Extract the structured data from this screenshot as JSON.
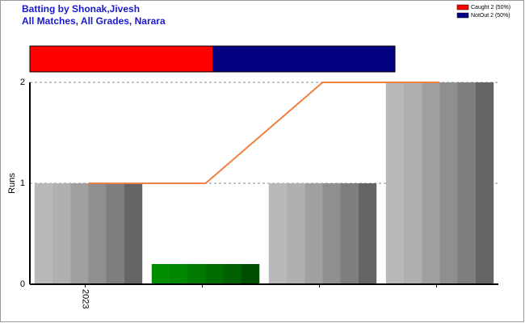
{
  "chart_data": {
    "type": "bar",
    "title": [
      "Batting by Shonak,Jivesh",
      "All Matches, All Grades, Narara"
    ],
    "y_label": "Runs",
    "categories": [
      "2023",
      null,
      null,
      null
    ],
    "values": [
      1,
      0.2,
      1,
      2
    ],
    "colors": [
      "#a8a8a8",
      "#008000",
      "#a8a8a8",
      "#a8a8a8"
    ],
    "line": {
      "values": [
        1,
        1,
        2,
        2
      ],
      "color": "#f08040"
    },
    "ylim": [
      0,
      2
    ],
    "yticks": [
      0,
      1,
      2
    ],
    "grid": true,
    "outcomes": {
      "xlim": [
        0,
        100
      ],
      "series": [
        {
          "name": "Caught 2 (50%)",
          "color": "#ff0000",
          "value": 50
        },
        {
          "name": "NotOut 2 (50%)",
          "color": "#000080",
          "value": 50
        }
      ]
    }
  }
}
